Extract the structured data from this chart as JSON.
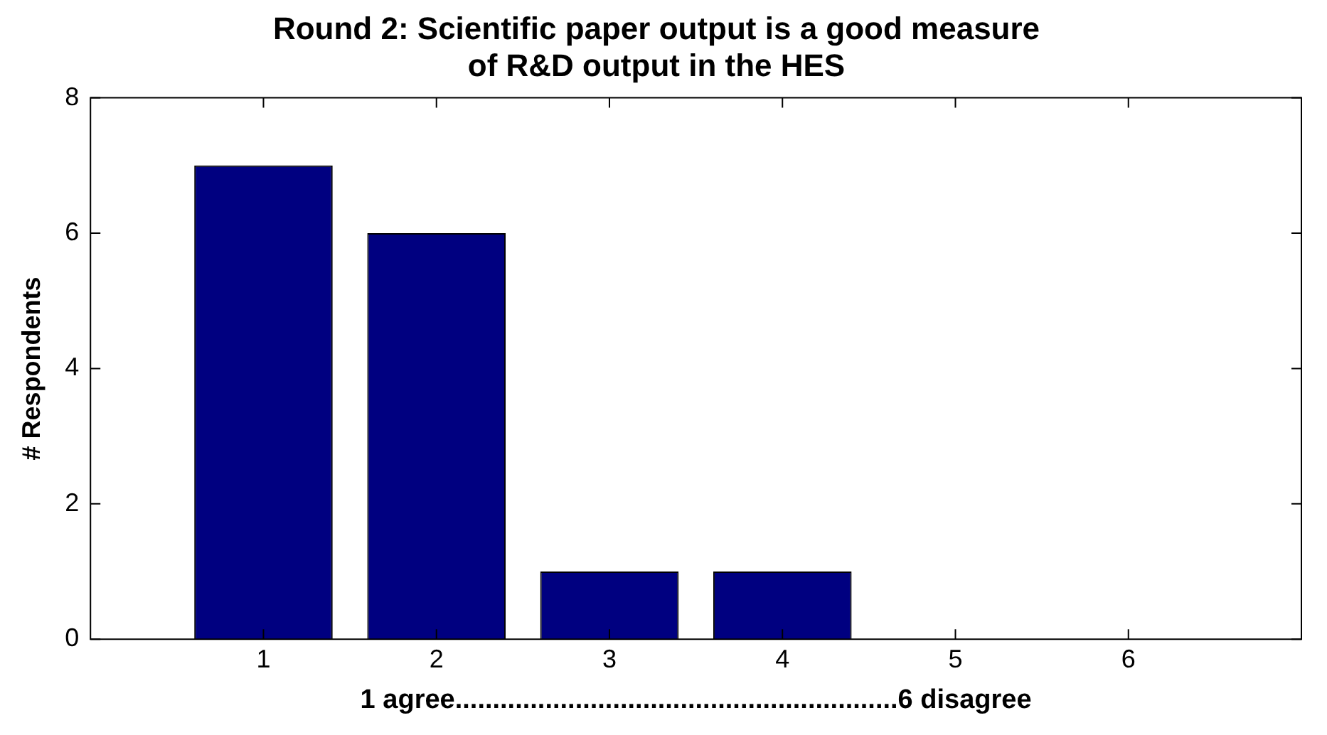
{
  "chart_data": {
    "type": "bar",
    "title": "Round 2: Scientific paper output is a good measure\nof R&D output in the HES",
    "xlabel": "1 agree...........................................................6 disagree",
    "ylabel": "# Respondents",
    "x": [
      1,
      2,
      3,
      4,
      5,
      6
    ],
    "values": [
      7,
      6,
      1,
      1,
      0,
      0
    ],
    "color": "#000080",
    "xlim": [
      0,
      7
    ],
    "xticks": [
      1,
      2,
      3,
      4,
      5,
      6
    ],
    "ylim": [
      0,
      8
    ],
    "yticks": [
      0,
      2,
      4,
      6,
      8
    ],
    "grid": false,
    "legend": false
  }
}
